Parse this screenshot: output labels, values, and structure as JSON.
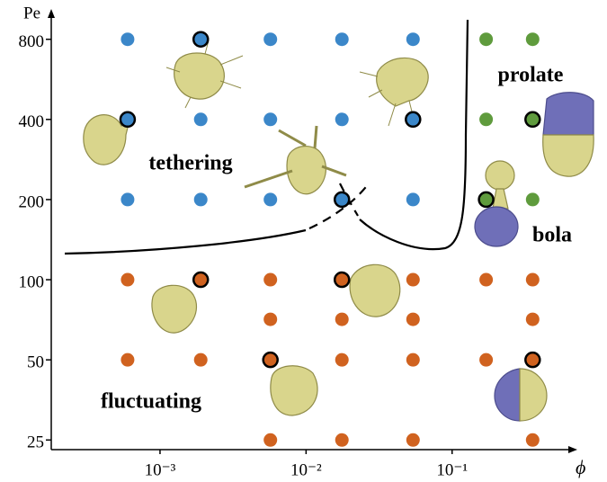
{
  "chart_data": {
    "type": "scatter",
    "x_label": "ϕ",
    "y_label": "Pe",
    "xscale": "log",
    "yscale": "log",
    "xlim": [
      0.00018,
      0.7
    ],
    "ylim": [
      23,
      1000
    ],
    "xticks": [
      {
        "value": 0.001,
        "label": "10⁻³"
      },
      {
        "value": 0.01,
        "label": "10⁻²"
      },
      {
        "value": 0.1,
        "label": "10⁻¹"
      }
    ],
    "yticks": [
      25,
      50,
      100,
      200,
      400,
      800
    ],
    "grid": false,
    "series": [
      {
        "name": "tethering",
        "color": "#3b87c9",
        "x": [
          0.0006,
          0.0019,
          0.0057,
          0.0176,
          0.054,
          0.0006,
          0.0019,
          0.0057,
          0.0176,
          0.054,
          0.0006,
          0.0019,
          0.0057,
          0.0176,
          0.054
        ],
        "values": [
          800,
          800,
          800,
          800,
          800,
          400,
          400,
          400,
          400,
          400,
          200,
          200,
          200,
          200,
          200
        ],
        "outlined": [
          false,
          true,
          false,
          false,
          false,
          true,
          false,
          false,
          false,
          true,
          false,
          false,
          false,
          true,
          false
        ]
      },
      {
        "name": "prolate",
        "color": "#5f9b3d",
        "x": [
          0.171,
          0.356,
          0.171,
          0.356
        ],
        "values": [
          800,
          800,
          400,
          400
        ],
        "outlined": [
          false,
          false,
          false,
          true
        ]
      },
      {
        "name": "bola",
        "color": "#5f9b3d",
        "x": [
          0.171,
          0.356
        ],
        "values": [
          200,
          200
        ],
        "outlined": [
          true,
          false
        ]
      },
      {
        "name": "fluctuating",
        "color": "#d0621f",
        "x": [
          0.0006,
          0.0019,
          0.0057,
          0.0176,
          0.054,
          0.171,
          0.356,
          0.0057,
          0.0176,
          0.054,
          0.356,
          0.0006,
          0.0019,
          0.0057,
          0.0176,
          0.054,
          0.171,
          0.356,
          0.0057,
          0.0176,
          0.054,
          0.356
        ],
        "values": [
          100,
          100,
          100,
          100,
          100,
          100,
          100,
          71,
          71,
          71,
          71,
          50,
          50,
          50,
          50,
          50,
          50,
          50,
          25,
          25,
          25,
          25
        ],
        "outlined": [
          false,
          true,
          false,
          true,
          false,
          false,
          false,
          false,
          false,
          false,
          false,
          false,
          false,
          true,
          false,
          false,
          false,
          true,
          false,
          false,
          false,
          false
        ]
      }
    ]
  }
}
